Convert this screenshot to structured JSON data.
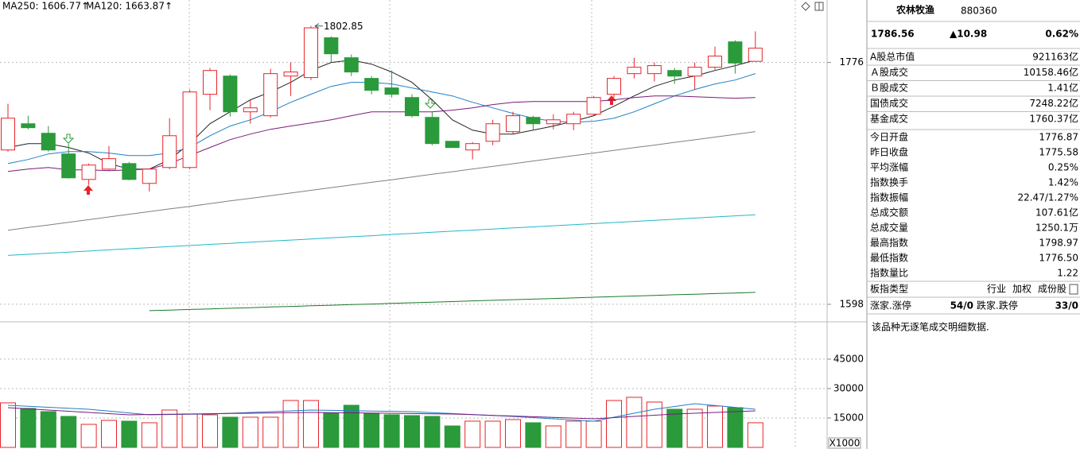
{
  "chart_data": [
    {
      "type": "candlestick",
      "legend": [
        {
          "text": "MA250: 1606.77↑",
          "color": "#1a7a2a"
        },
        {
          "text": "MA120: 1663.87↑",
          "color": "#20b8c8"
        }
      ],
      "open": [
        1711.6,
        1730.9,
        1723.9,
        1708.7,
        1689.9,
        1697.5,
        1701.6,
        1687.0,
        1698.7,
        1698.7,
        1752.6,
        1766.0,
        1739.7,
        1736.8,
        1766.0,
        1764.9,
        1794.2,
        1779.5,
        1764.3,
        1757.3,
        1750.2,
        1735.6,
        1718.0,
        1711.6,
        1718.0,
        1725.1,
        1735.6,
        1730.9,
        1730.9,
        1737.9,
        1752.6,
        1767.8,
        1767.8,
        1770.1,
        1766.0,
        1772.5,
        1791.2,
        1776.87
      ],
      "high": [
        1745.6,
        1736.8,
        1729.2,
        1716.3,
        1701.6,
        1714.5,
        1702.8,
        1697.5,
        1735.0,
        1756.1,
        1771.9,
        1767.2,
        1748.5,
        1771.3,
        1776.0,
        1802.85,
        1795.3,
        1781.9,
        1766.0,
        1770.1,
        1752.6,
        1739.7,
        1718.0,
        1717.4,
        1733.8,
        1739.7,
        1736.8,
        1737.9,
        1739.7,
        1751.4,
        1766.0,
        1779.5,
        1776.0,
        1771.9,
        1776.0,
        1787.7,
        1792.4,
        1798.97
      ],
      "low": [
        1710.4,
        1726.8,
        1710.4,
        1690.5,
        1685.8,
        1696.4,
        1689.3,
        1681.1,
        1697.5,
        1697.5,
        1740.9,
        1736.2,
        1730.9,
        1735.6,
        1751.4,
        1763.1,
        1776.0,
        1766.0,
        1752.6,
        1750.2,
        1735.6,
        1715.1,
        1713.4,
        1704.6,
        1715.1,
        1723.3,
        1726.2,
        1726.8,
        1726.2,
        1736.8,
        1750.2,
        1764.3,
        1762.0,
        1760.2,
        1756.1,
        1770.7,
        1767.8,
        1776.5
      ],
      "close": [
        1735.0,
        1728.0,
        1711.6,
        1691.1,
        1700.5,
        1705.2,
        1689.9,
        1697.5,
        1722.1,
        1754.3,
        1770.1,
        1739.7,
        1742.6,
        1767.8,
        1769.0,
        1801.5,
        1782.4,
        1769.0,
        1755.5,
        1752.6,
        1736.8,
        1716.3,
        1713.4,
        1716.3,
        1730.9,
        1736.8,
        1730.9,
        1733.8,
        1737.9,
        1750.2,
        1764.3,
        1772.5,
        1773.7,
        1766.0,
        1772.5,
        1780.7,
        1775.58,
        1786.56
      ],
      "up_color": "#e8242a",
      "down_color": "#2a9a3a",
      "lines": [
        {
          "color": "#222222",
          "values": [
            1713.4,
            1716.3,
            1716.3,
            1713.4,
            1709.3,
            1701.6,
            1697.5,
            1697.5,
            1704.6,
            1716.3,
            1730.9,
            1739.7,
            1748.5,
            1754.3,
            1761.4,
            1770.1,
            1776.0,
            1777.8,
            1774.8,
            1769.0,
            1761.4,
            1748.5,
            1733.8,
            1726.2,
            1723.3,
            1723.3,
            1726.2,
            1729.2,
            1732.7,
            1736.8,
            1743.8,
            1751.4,
            1758.4,
            1763.1,
            1766.0,
            1770.1,
            1773.7,
            1777.8
          ]
        },
        {
          "color": "#1f7fc8",
          "values": [
            1701.6,
            1704.6,
            1708.7,
            1710.4,
            1710.4,
            1709.3,
            1707.5,
            1707.5,
            1709.3,
            1713.4,
            1722.1,
            1729.2,
            1733.8,
            1739.7,
            1746.7,
            1752.6,
            1758.4,
            1761.4,
            1761.4,
            1760.2,
            1757.3,
            1754.3,
            1751.4,
            1746.7,
            1742.6,
            1738.5,
            1735.0,
            1732.7,
            1732.1,
            1732.7,
            1735.0,
            1739.7,
            1745.6,
            1751.4,
            1756.1,
            1760.2,
            1763.1,
            1767.8
          ]
        },
        {
          "color": "#7a1a7a",
          "values": [
            1695.8,
            1697.5,
            1698.7,
            1697.0,
            1697.0,
            1696.4,
            1697.0,
            1697.5,
            1701.6,
            1707.5,
            1713.4,
            1719.2,
            1723.3,
            1726.8,
            1729.2,
            1731.5,
            1733.8,
            1736.8,
            1739.7,
            1739.7,
            1739.7,
            1739.7,
            1740.9,
            1742.6,
            1745.0,
            1746.7,
            1747.3,
            1747.3,
            1747.3,
            1747.3,
            1748.5,
            1750.2,
            1751.4,
            1751.4,
            1750.8,
            1750.2,
            1749.7,
            1750.2
          ]
        },
        {
          "color": "#808080",
          "values": [
            1652.5,
            1654.5,
            1656.4,
            1658.4,
            1660.3,
            1662.3,
            1664.3,
            1666.2,
            1668.2,
            1670.1,
            1672.1,
            1674.1,
            1676.0,
            1678.0,
            1679.9,
            1681.9,
            1683.9,
            1685.8,
            1687.8,
            1689.7,
            1691.7,
            1693.7,
            1695.6,
            1697.6,
            1699.5,
            1701.5,
            1703.5,
            1705.4,
            1707.4,
            1709.3,
            1711.3,
            1713.3,
            1715.2,
            1717.2,
            1719.1,
            1721.1,
            1723.1,
            1725.1
          ]
        },
        {
          "color": "#20b8c8",
          "values": [
            1634.0,
            1634.8,
            1635.6,
            1636.4,
            1637.2,
            1638.1,
            1638.9,
            1639.7,
            1640.5,
            1641.3,
            1642.1,
            1642.9,
            1643.7,
            1644.5,
            1645.3,
            1646.1,
            1646.9,
            1647.7,
            1648.5,
            1649.4,
            1650.2,
            1651.0,
            1651.8,
            1652.6,
            1653.4,
            1654.2,
            1655.0,
            1655.8,
            1656.6,
            1657.4,
            1658.2,
            1659.0,
            1659.8,
            1660.6,
            1661.5,
            1662.3,
            1663.1,
            1663.87
          ]
        },
        {
          "color": "#1a7a2a",
          "values": [
            null,
            null,
            null,
            null,
            null,
            null,
            null,
            1593.3,
            1593.7,
            1594.2,
            1594.6,
            1595.1,
            1595.5,
            1596.0,
            1596.4,
            1596.9,
            1597.3,
            1597.8,
            1598.2,
            1598.7,
            1599.1,
            1599.6,
            1600.0,
            1600.5,
            1600.9,
            1601.4,
            1601.8,
            1602.3,
            1602.7,
            1603.2,
            1603.6,
            1604.1,
            1604.5,
            1605.0,
            1605.4,
            1605.9,
            1606.3,
            1606.77
          ]
        }
      ],
      "ylim": [
        1588,
        1822
      ],
      "yticks": [
        1776,
        1598
      ]
    },
    {
      "type": "bar",
      "values": [
        22703,
        19865,
        18243,
        15811,
        11757,
        13784,
        13378,
        12568,
        19054,
        17027,
        16622,
        15405,
        15405,
        15405,
        23919,
        23919,
        17432,
        21486,
        17432,
        16622,
        16216,
        15811,
        10946,
        13378,
        13378,
        14189,
        12568,
        10946,
        13378,
        13378,
        23919,
        25541,
        23108,
        19459,
        19459,
        21081,
        20270,
        12568
      ],
      "lines": [
        {
          "color": "#1f7fc8",
          "values": [
            21486,
            20979,
            20473,
            19966,
            19459,
            18514,
            17568,
            16622,
            16757,
            16892,
            17027,
            17432,
            17838,
            18243,
            18649,
            19054,
            18892,
            18730,
            18568,
            18405,
            18243,
            17757,
            17270,
            16784,
            16297,
            15811,
            15203,
            14595,
            13986,
            13378,
            15405,
            17432,
            19459,
            20878,
            22297,
            21351,
            20405,
            19459
          ]
        },
        {
          "color": "#7a1a7a",
          "values": [
            20270,
            19662,
            19054,
            18446,
            17838,
            17230,
            16622,
            16757,
            16892,
            17027,
            17162,
            17297,
            17432,
            17567,
            17702,
            17838,
            17722,
            17606,
            17490,
            17374,
            17258,
            17142,
            17027,
            16680,
            16332,
            15985,
            15637,
            15290,
            14942,
            14595,
            15203,
            15811,
            16419,
            17027,
            17432,
            17838,
            18243,
            18649
          ]
        }
      ],
      "ylim": [
        0,
        64000
      ],
      "yticks": [
        15000,
        30000,
        45000
      ],
      "unit": "X1000"
    }
  ],
  "panel": {
    "name": "农林牧渔",
    "code": "880360",
    "price": "1786.56",
    "change": "▲10.98",
    "pct": "0.62%",
    "rows_top": [
      {
        "label": "A股总市值",
        "value": "921163亿"
      },
      {
        "label": "Ａ股成交",
        "value": "10158.46亿"
      },
      {
        "label": "Ｂ股成交",
        "value": "1.41亿"
      },
      {
        "label": "国债成交",
        "value": "7248.22亿"
      },
      {
        "label": "基金成交",
        "value": "1760.37亿"
      }
    ],
    "rows": [
      {
        "label": "今日开盘",
        "value": "1776.87",
        "color": "#e8242a"
      },
      {
        "label": "昨日收盘",
        "value": "1775.58"
      },
      {
        "label": "平均涨幅",
        "value": "0.25%",
        "color": "#e8242a"
      },
      {
        "label": "指数换手",
        "value": "1.42%"
      },
      {
        "label": "指数振幅",
        "value": "22.47/1.27%"
      },
      {
        "label": "总成交额",
        "value": "107.61亿"
      },
      {
        "label": "总成交量",
        "value": "1250.1万"
      },
      {
        "label": "最高指数",
        "value": "1798.97",
        "color": "#e8242a"
      },
      {
        "label": "最低指数",
        "value": "1776.50",
        "color": "#e8242a"
      },
      {
        "label": "指数量比",
        "value": "1.22",
        "color": "#e8242a"
      }
    ],
    "type_row": {
      "label": "板指类型",
      "options": [
        "行业",
        "加权",
        "成份股"
      ]
    },
    "breadth": {
      "up_label": "涨家.涨停",
      "up": "54/0",
      "down_label": "跌家.跌停",
      "down": "33/0"
    },
    "note": "该品种无逐笔成交明细数据."
  }
}
